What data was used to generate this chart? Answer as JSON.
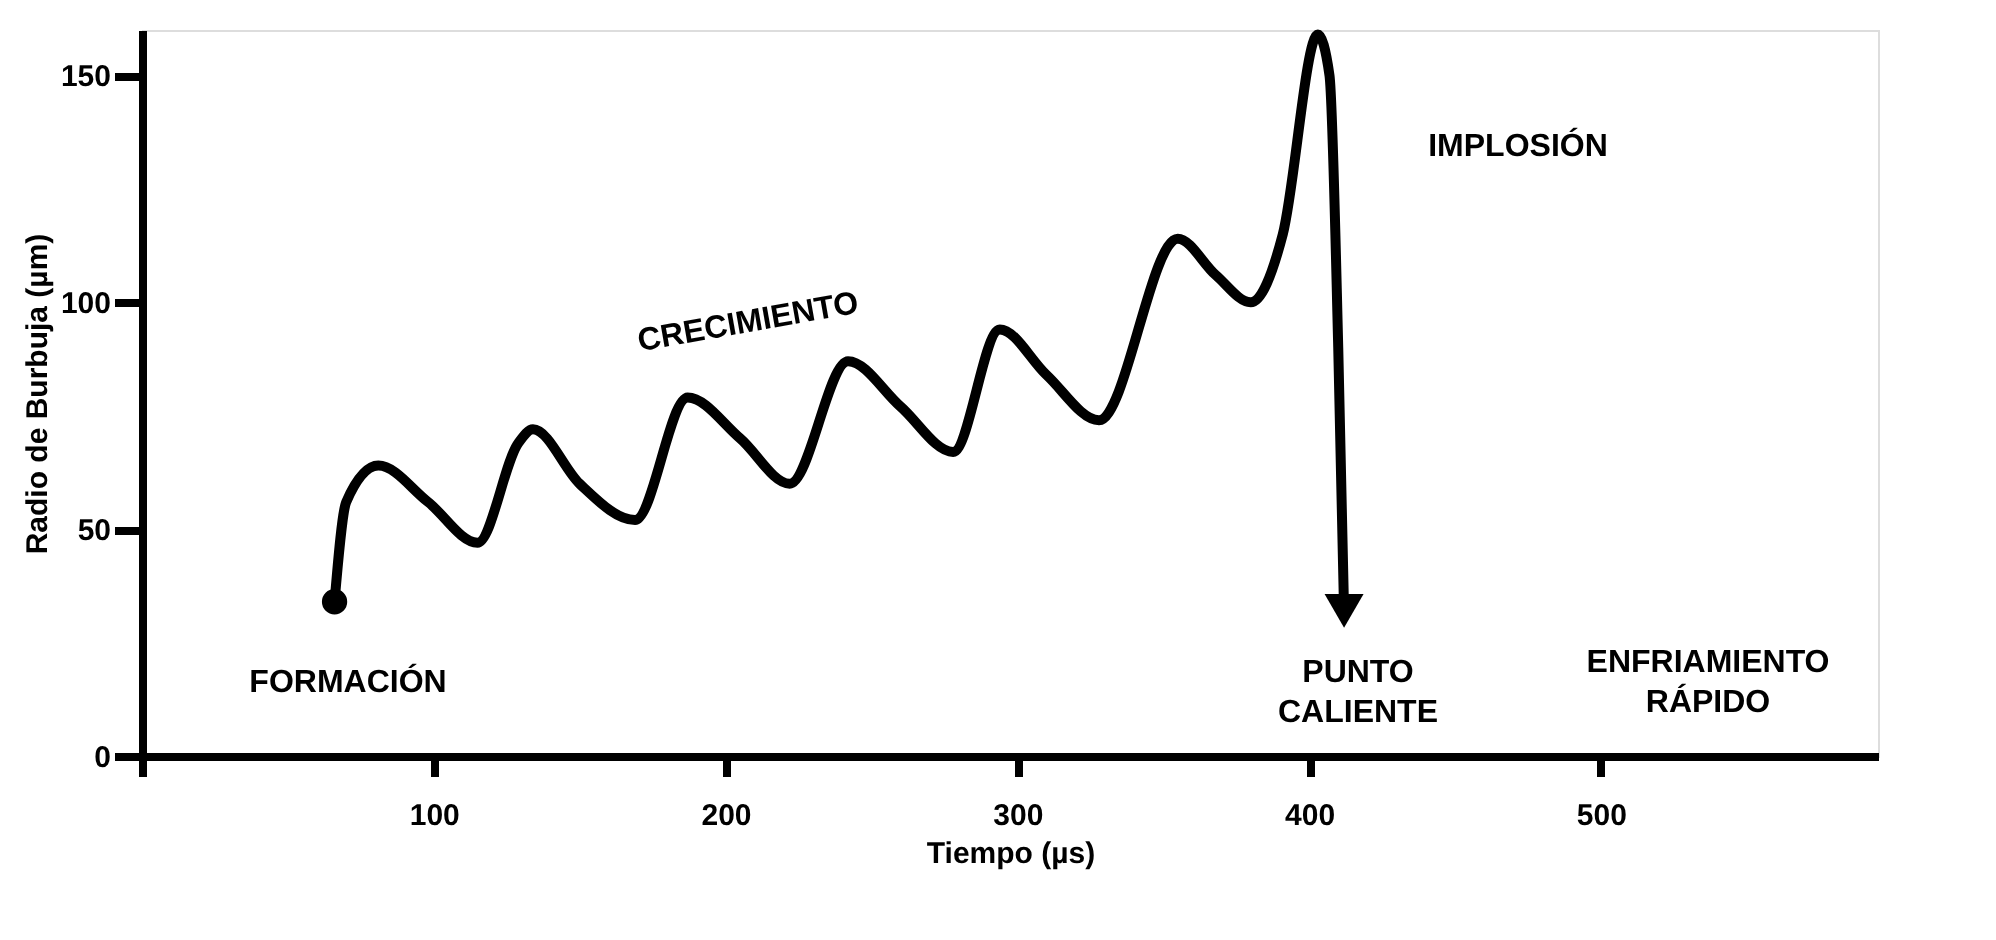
{
  "chart_data": {
    "type": "line",
    "xlabel": "Tiempo (µs)",
    "ylabel": "Radio de  Burbuja (µm)",
    "x": [
      66,
      70,
      81,
      98,
      115,
      129,
      134,
      150,
      169,
      187,
      205,
      222,
      242,
      260,
      278,
      294,
      310,
      328,
      355,
      368,
      380,
      391,
      403,
      407,
      410,
      412
    ],
    "series": [
      {
        "color": "#000000",
        "values": [
          34,
          56,
          64,
          56,
          47,
          69,
          72,
          60,
          52,
          79,
          70,
          60,
          87,
          77,
          67,
          94,
          84,
          74,
          114,
          106,
          100,
          115,
          159,
          150,
          90,
          32
        ]
      }
    ],
    "xlim": [
      0,
      595
    ],
    "ylim": [
      0,
      160
    ],
    "xticks": [
      {
        "value": 0,
        "label": null
      },
      100,
      200,
      300,
      400,
      500
    ],
    "yticks": [
      0,
      50,
      100,
      150
    ],
    "grid": false,
    "line_style": "solid",
    "annotations": [
      "FORMACIÓN",
      "CRECIMIENTO",
      "IMPLOSIÓN",
      "PUNTO\nCALIENTE",
      "ENFRIAMIENTO\nRÁPIDO"
    ]
  }
}
